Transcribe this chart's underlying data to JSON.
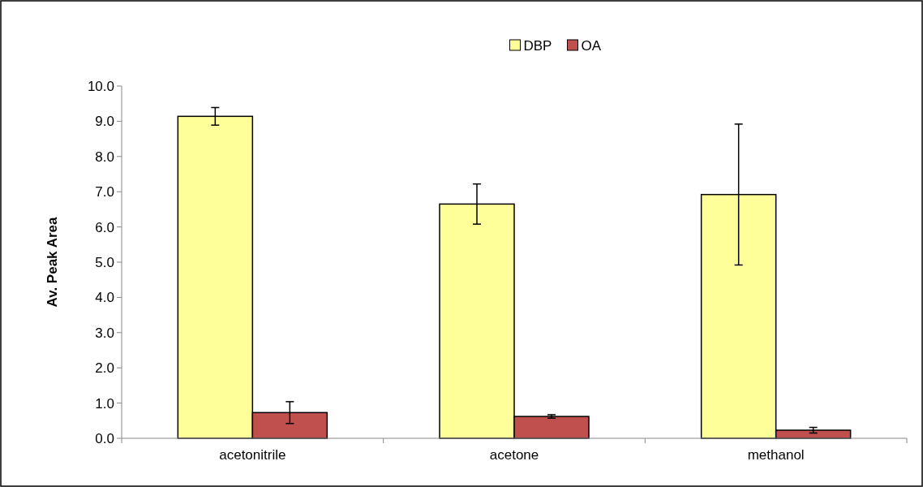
{
  "chart_data": {
    "type": "bar",
    "ylabel": "Av. Peak Area",
    "categories": [
      "acetonitrile",
      "acetone",
      "methanol"
    ],
    "series": [
      {
        "name": "DBP",
        "color": "#ffff99",
        "values": [
          9.14,
          6.65,
          6.92
        ],
        "errors": [
          0.25,
          0.57,
          2.0
        ]
      },
      {
        "name": "OA",
        "color": "#c0504d",
        "values": [
          0.73,
          0.62,
          0.23
        ],
        "errors": [
          0.31,
          0.05,
          0.08
        ]
      }
    ],
    "ylim": [
      0,
      10
    ],
    "yticks": [
      {
        "value": 0,
        "label": "0.0"
      },
      {
        "value": 1,
        "label": "1.0"
      },
      {
        "value": 2,
        "label": "2.0"
      },
      {
        "value": 3,
        "label": "3.0"
      },
      {
        "value": 4,
        "label": "4.0"
      },
      {
        "value": 5,
        "label": "5.0"
      },
      {
        "value": 6,
        "label": "6.0"
      },
      {
        "value": 7,
        "label": "7.0"
      },
      {
        "value": 8,
        "label": "8.0"
      },
      {
        "value": 9,
        "label": "9.0"
      },
      {
        "value": 10,
        "label": "10.0"
      }
    ],
    "grid": false,
    "legend": "top"
  }
}
